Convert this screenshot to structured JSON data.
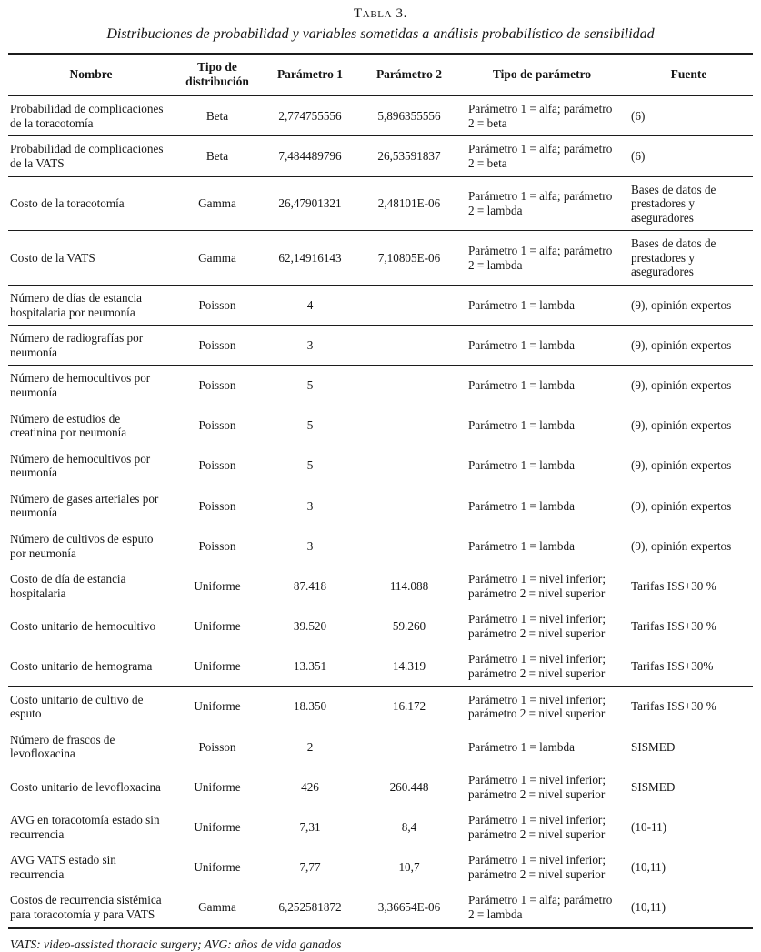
{
  "table": {
    "number_label": "Tabla 3.",
    "title": "Distribuciones de probabilidad y variables sometidas a análisis probabilístico de sensibilidad",
    "columns": [
      "Nombre",
      "Tipo de distribución",
      "Parámetro 1",
      "Parámetro 2",
      "Tipo de parámetro",
      "Fuente"
    ],
    "rows": [
      {
        "name": "Probabilidad de complicaciones de la toracotomía",
        "dist": "Beta",
        "p1": "2,774755556",
        "p2": "5,896355556",
        "ptype": "Parámetro 1 = alfa; parámetro 2 = beta",
        "fuente": "(6)"
      },
      {
        "name": "Probabilidad de complicaciones de la VATS",
        "dist": "Beta",
        "p1": "7,484489796",
        "p2": "26,53591837",
        "ptype": "Parámetro 1 = alfa; parámetro 2 = beta",
        "fuente": "(6)"
      },
      {
        "name": "Costo de la toracotomía",
        "dist": "Gamma",
        "p1": "26,47901321",
        "p2": "2,48101E-06",
        "ptype": "Parámetro 1 = alfa; parámetro 2 = lambda",
        "fuente": "Bases de datos de prestadores y aseguradores"
      },
      {
        "name": "Costo de la VATS",
        "dist": "Gamma",
        "p1": "62,14916143",
        "p2": "7,10805E-06",
        "ptype": "Parámetro 1 = alfa; parámetro 2 = lambda",
        "fuente": "Bases de datos de prestadores y aseguradores"
      },
      {
        "name": "Número de días de estancia hospitalaria por neumonía",
        "dist": "Poisson",
        "p1": "4",
        "p2": "",
        "ptype": "Parámetro 1 = lambda",
        "fuente": "(9), opinión expertos"
      },
      {
        "name": "Número de radiografías por neumonía",
        "dist": "Poisson",
        "p1": "3",
        "p2": "",
        "ptype": "Parámetro 1 = lambda",
        "fuente": "(9), opinión expertos"
      },
      {
        "name": "Número de hemocultivos por neumonía",
        "dist": "Poisson",
        "p1": "5",
        "p2": "",
        "ptype": "Parámetro 1 = lambda",
        "fuente": "(9), opinión expertos"
      },
      {
        "name": "Número de estudios de creatinina por neumonía",
        "dist": "Poisson",
        "p1": "5",
        "p2": "",
        "ptype": "Parámetro 1 = lambda",
        "fuente": "(9), opinión expertos"
      },
      {
        "name": "Número de hemocultivos por neumonía",
        "dist": "Poisson",
        "p1": "5",
        "p2": "",
        "ptype": "Parámetro 1 = lambda",
        "fuente": "(9), opinión expertos"
      },
      {
        "name": "Número de gases arteriales por neumonía",
        "dist": "Poisson",
        "p1": "3",
        "p2": "",
        "ptype": "Parámetro 1 = lambda",
        "fuente": "(9), opinión expertos"
      },
      {
        "name": "Número de cultivos de esputo por neumonía",
        "dist": "Poisson",
        "p1": "3",
        "p2": "",
        "ptype": "Parámetro 1 = lambda",
        "fuente": "(9), opinión expertos"
      },
      {
        "name": "Costo de día de estancia hospitalaria",
        "dist": "Uniforme",
        "p1": "87.418",
        "p2": "114.088",
        "ptype": "Parámetro 1 = nivel inferior; parámetro 2 = nivel superior",
        "fuente": "Tarifas ISS+30 %"
      },
      {
        "name": "Costo unitario de hemocultivo",
        "dist": "Uniforme",
        "p1": "39.520",
        "p2": "59.260",
        "ptype": "Parámetro 1 = nivel inferior; parámetro 2 = nivel superior",
        "fuente": "Tarifas ISS+30 %"
      },
      {
        "name": "Costo unitario de hemograma",
        "dist": "Uniforme",
        "p1": "13.351",
        "p2": "14.319",
        "ptype": "Parámetro 1 = nivel inferior; parámetro 2 = nivel superior",
        "fuente": "Tarifas ISS+30%"
      },
      {
        "name": "Costo unitario de cultivo de esputo",
        "dist": "Uniforme",
        "p1": "18.350",
        "p2": "16.172",
        "ptype": "Parámetro 1 = nivel inferior; parámetro 2 = nivel superior",
        "fuente": "Tarifas ISS+30 %"
      },
      {
        "name": "Número de frascos de levofloxacina",
        "dist": "Poisson",
        "p1": "2",
        "p2": "",
        "ptype": "Parámetro 1 = lambda",
        "fuente": "SISMED"
      },
      {
        "name": "Costo unitario de levofloxacina",
        "dist": "Uniforme",
        "p1": "426",
        "p2": "260.448",
        "ptype": "Parámetro 1 = nivel inferior; parámetro 2 = nivel superior",
        "fuente": "SISMED"
      },
      {
        "name": "AVG en toracotomía estado sin recurrencia",
        "dist": "Uniforme",
        "p1": "7,31",
        "p2": "8,4",
        "ptype": "Parámetro 1 = nivel inferior; parámetro 2 = nivel superior",
        "fuente": "(10-11)"
      },
      {
        "name": "AVG VATS estado sin recurrencia",
        "dist": "Uniforme",
        "p1": "7,77",
        "p2": "10,7",
        "ptype": "Parámetro 1 = nivel inferior; parámetro 2 = nivel superior",
        "fuente": "(10,11)"
      },
      {
        "name": "Costos de recurrencia sistémica para toracotomía y para VATS",
        "dist": "Gamma",
        "p1": "6,252581872",
        "p2": "3,36654E-06",
        "ptype": "Parámetro 1 = alfa; parámetro 2 = lambda",
        "fuente": "(10,11)"
      }
    ],
    "footnote": "VATS: video-assisted thoracic surgery; AVG: años de vida ganados"
  }
}
